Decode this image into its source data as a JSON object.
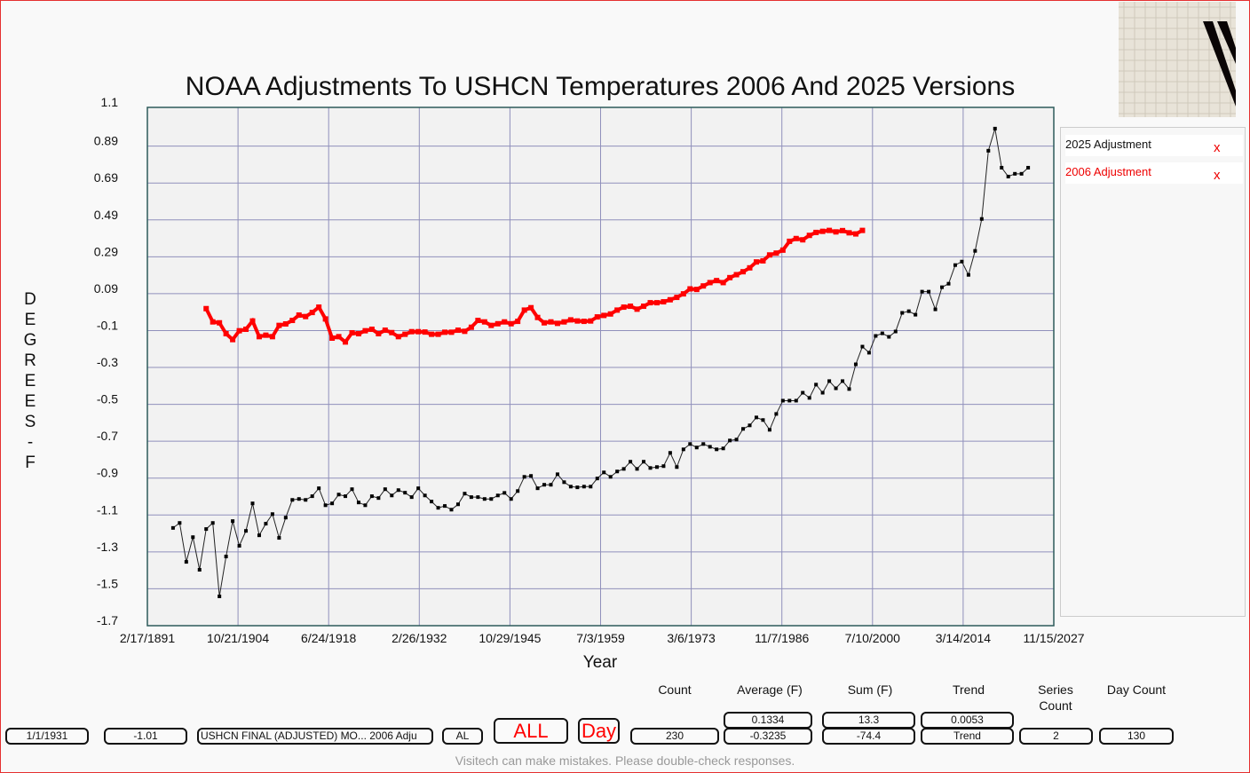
{
  "chart_data": {
    "type": "line",
    "title": "NOAA Adjustments To USHCN Temperatures 2006 And 2025 Versions",
    "xlabel": "Year",
    "ylabel": "DEGREES - F",
    "xlim": [
      1891.13,
      2027.87
    ],
    "ylim": [
      -1.71,
      1.1
    ],
    "x_tick_labels": [
      "2/17/1891",
      "10/21/1904",
      "6/24/1918",
      "2/26/1932",
      "10/29/1945",
      "7/3/1959",
      "3/6/1973",
      "11/7/1986",
      "7/10/2000",
      "3/14/2014",
      "11/15/2027"
    ],
    "y_tick_labels": [
      "1.1",
      "0.89",
      "0.69",
      "0.49",
      "0.29",
      "0.09",
      "-0.1",
      "-0.3",
      "-0.5",
      "-0.7",
      "-0.9",
      "-1.1",
      "-1.3",
      "-1.5",
      "-1.7"
    ],
    "grid": true,
    "legend_position": "right",
    "series": [
      {
        "name": "2025 Adjustment",
        "color": "#000000",
        "x_start": 1895,
        "values": [
          -1.18,
          -1.153,
          -1.364,
          -1.23,
          -1.407,
          -1.186,
          -1.153,
          -1.551,
          -1.335,
          -1.143,
          -1.277,
          -1.196,
          -1.047,
          -1.22,
          -1.157,
          -1.105,
          -1.234,
          -1.124,
          -1.028,
          -1.023,
          -1.028,
          -1.008,
          -0.965,
          -1.057,
          -1.047,
          -0.999,
          -1.008,
          -0.97,
          -1.042,
          -1.057,
          -1.008,
          -1.018,
          -0.97,
          -1.004,
          -0.975,
          -0.989,
          -1.013,
          -0.965,
          -1.004,
          -1.037,
          -1.071,
          -1.061,
          -1.081,
          -1.052,
          -0.994,
          -1.013,
          -1.013,
          -1.023,
          -1.023,
          -1.004,
          -0.99,
          -1.023,
          -0.98,
          -0.903,
          -0.898,
          -0.965,
          -0.946,
          -0.946,
          -0.889,
          -0.932,
          -0.956,
          -0.96,
          -0.956,
          -0.956,
          -0.912,
          -0.879,
          -0.903,
          -0.874,
          -0.86,
          -0.821,
          -0.86,
          -0.821,
          -0.855,
          -0.85,
          -0.845,
          -0.773,
          -0.85,
          -0.754,
          -0.725,
          -0.744,
          -0.725,
          -0.74,
          -0.754,
          -0.749,
          -0.706,
          -0.701,
          -0.643,
          -0.624,
          -0.581,
          -0.595,
          -0.648,
          -0.562,
          -0.49,
          -0.49,
          -0.49,
          -0.447,
          -0.475,
          -0.403,
          -0.447,
          -0.384,
          -0.423,
          -0.384,
          -0.427,
          -0.293,
          -0.197,
          -0.23,
          -0.139,
          -0.125,
          -0.144,
          -0.115,
          -0.014,
          -0.005,
          -0.024,
          0.101,
          0.101,
          0.005,
          0.125,
          0.144,
          0.245,
          0.264,
          0.192,
          0.322,
          0.495,
          0.865,
          0.985,
          0.773,
          0.725,
          0.74,
          0.74,
          0.773
        ]
      },
      {
        "name": "2006 Adjustment",
        "color": "#ff0000",
        "x_start": 1900,
        "values": [
          0.009,
          -0.063,
          -0.068,
          -0.127,
          -0.159,
          -0.111,
          -0.103,
          -0.058,
          -0.143,
          -0.135,
          -0.143,
          -0.082,
          -0.074,
          -0.055,
          -0.026,
          -0.034,
          -0.012,
          0.017,
          -0.047,
          -0.151,
          -0.143,
          -0.172,
          -0.122,
          -0.127,
          -0.111,
          -0.103,
          -0.127,
          -0.108,
          -0.121,
          -0.143,
          -0.13,
          -0.116,
          -0.116,
          -0.118,
          -0.13,
          -0.13,
          -0.119,
          -0.119,
          -0.108,
          -0.114,
          -0.092,
          -0.055,
          -0.063,
          -0.082,
          -0.073,
          -0.063,
          -0.073,
          -0.06,
          0.001,
          0.014,
          -0.039,
          -0.068,
          -0.063,
          -0.071,
          -0.063,
          -0.052,
          -0.058,
          -0.06,
          -0.058,
          -0.036,
          -0.028,
          -0.02,
          0.001,
          0.017,
          0.022,
          0.006,
          0.022,
          0.041,
          0.041,
          0.046,
          0.057,
          0.07,
          0.089,
          0.116,
          0.113,
          0.132,
          0.15,
          0.161,
          0.15,
          0.177,
          0.193,
          0.209,
          0.23,
          0.262,
          0.268,
          0.3,
          0.31,
          0.326,
          0.374,
          0.389,
          0.382,
          0.406,
          0.422,
          0.428,
          0.433,
          0.425,
          0.432,
          0.42,
          0.414,
          0.433
        ]
      }
    ]
  },
  "legend": {
    "items": [
      {
        "label": "2025 Adjustment",
        "remove": "x",
        "color": "#000000"
      },
      {
        "label": "2006 Adjustment",
        "remove": "x",
        "color": "#ff0000"
      }
    ]
  },
  "stats": {
    "headers": {
      "count": "Count",
      "average": "Average (F)",
      "sum": "Sum (F)",
      "trend": "Trend",
      "series_count": "Series Count",
      "day_count": "Day Count"
    },
    "date": "1/1/1931",
    "value": "-1.01",
    "series_name": "USHCN FINAL (ADJUSTED) MO... 2006 Adju",
    "state": "AL",
    "all_button": "ALL",
    "day_button": "Day",
    "count": "230",
    "average_top": "0.1334",
    "average": "-0.3235",
    "sum_top": "13.3",
    "sum": "-74.4",
    "trend_top": "0.0053",
    "trend": "Trend",
    "series_count": "2",
    "day_count": "130"
  },
  "footer": "Visitech can make mistakes. Please double-check responses."
}
